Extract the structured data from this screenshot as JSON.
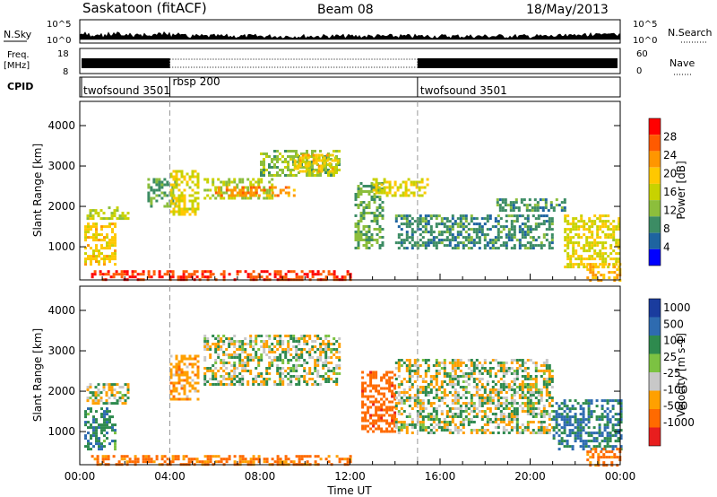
{
  "header": {
    "station": "Saskatoon (fitACF)",
    "beam": "Beam 08",
    "date": "18/May/2013"
  },
  "nsky_panel": {
    "left_label": "N.Sky",
    "right_label": "N.Search",
    "right_ticks": [
      "10^5",
      "10^0"
    ],
    "left_ticks": [
      "10^5",
      "10^0"
    ]
  },
  "freq_panel": {
    "left_label_1": "Freq.",
    "left_label_2": "[MHz]",
    "left_ticks": [
      "18",
      "8"
    ],
    "right_label": "Nave",
    "right_ticks": [
      "60",
      "0"
    ]
  },
  "cpid_panel": {
    "label": "CPID",
    "segments": [
      {
        "name": "twofsound 3501",
        "start_hour": 0
      },
      {
        "name": "rbsp 200",
        "start_hour": 4
      },
      {
        "name": "twofsound 3501",
        "start_hour": 15
      }
    ]
  },
  "x_axis": {
    "label": "Time UT",
    "ticks": [
      "00:00",
      "04:00",
      "08:00",
      "12:00",
      "16:00",
      "20:00",
      "00:00"
    ],
    "range_hours": [
      0,
      24
    ]
  },
  "power_panel": {
    "ylabel": "Slant Range [km]",
    "yticks": [
      "4000",
      "3000",
      "2000",
      "1000"
    ],
    "colorbar_label": "Power [dB]",
    "colorbar_ticks": [
      "28",
      "24",
      "20",
      "16",
      "12",
      "8",
      "4"
    ],
    "colorbar_colors": [
      "#ff0000",
      "#ff5a00",
      "#ff9600",
      "#ffc800",
      "#c8d200",
      "#8cbe3c",
      "#3c8c64",
      "#1e64a0",
      "#0000ff"
    ]
  },
  "velocity_panel": {
    "ylabel": "Slant Range [km]",
    "yticks": [
      "4000",
      "3000",
      "2000",
      "1000"
    ],
    "colorbar_label": "Velocity [m s-1]",
    "colorbar_ticks": [
      "1000",
      "500",
      "100",
      "25",
      "-25",
      "-100",
      "-500",
      "-1000"
    ],
    "colorbar_colors": [
      "#1a3c9e",
      "#2e6bb0",
      "#2e8a4e",
      "#7cc242",
      "#c8c8c8",
      "#ffa000",
      "#ff6a00",
      "#e81e1e"
    ]
  },
  "chart_data": {
    "type": "heatmap",
    "title": "Saskatoon (fitACF)",
    "xlabel": "Time UT",
    "ylabel": "Slant Range [km]",
    "xlim_hours": [
      0,
      24
    ],
    "ylim_km": [
      180,
      4600
    ],
    "boundary_markers_hours": [
      4,
      15
    ],
    "series": [
      {
        "name": "Power [dB]",
        "scale": [
          0,
          30
        ],
        "regions": [
          {
            "t0": 0.2,
            "t1": 1.6,
            "r0": 600,
            "r1": 1600,
            "value": 18
          },
          {
            "t0": 0.3,
            "t1": 2.2,
            "r0": 1700,
            "r1": 2000,
            "value": 14
          },
          {
            "t0": 0.5,
            "t1": 12.0,
            "r0": 180,
            "r1": 420,
            "value": 26
          },
          {
            "t0": 3.0,
            "t1": 4.2,
            "r0": 2000,
            "r1": 2700,
            "value": 10
          },
          {
            "t0": 4.0,
            "t1": 5.2,
            "r0": 1800,
            "r1": 2900,
            "value": 16
          },
          {
            "t0": 5.5,
            "t1": 8.5,
            "r0": 2200,
            "r1": 2700,
            "value": 14
          },
          {
            "t0": 6.0,
            "t1": 9.5,
            "r0": 2300,
            "r1": 2500,
            "value": 22
          },
          {
            "t0": 8.0,
            "t1": 11.5,
            "r0": 2800,
            "r1": 3400,
            "value": 12
          },
          {
            "t0": 9.5,
            "t1": 11.5,
            "r0": 2900,
            "r1": 3300,
            "value": 18
          },
          {
            "t0": 12.2,
            "t1": 13.5,
            "r0": 1000,
            "r1": 2600,
            "value": 10
          },
          {
            "t0": 13.0,
            "t1": 15.5,
            "r0": 2300,
            "r1": 2700,
            "value": 16
          },
          {
            "t0": 14.0,
            "t1": 21.0,
            "r0": 1000,
            "r1": 1800,
            "value": 8
          },
          {
            "t0": 18.5,
            "t1": 21.5,
            "r0": 1900,
            "r1": 2200,
            "value": 8
          },
          {
            "t0": 21.5,
            "t1": 24.0,
            "r0": 500,
            "r1": 1800,
            "value": 16
          },
          {
            "t0": 22.5,
            "t1": 24.0,
            "r0": 180,
            "r1": 600,
            "value": 20
          }
        ]
      },
      {
        "name": "Velocity [m s-1]",
        "scale": [
          -1000,
          1000
        ],
        "regions": [
          {
            "t0": 0.2,
            "t1": 1.6,
            "r0": 600,
            "r1": 1600,
            "value": 200
          },
          {
            "t0": 0.3,
            "t1": 2.2,
            "r0": 1700,
            "r1": 2200,
            "value": 0
          },
          {
            "t0": 0.5,
            "t1": 12.0,
            "r0": 180,
            "r1": 420,
            "value": -400
          },
          {
            "t0": 4.0,
            "t1": 5.2,
            "r0": 1800,
            "r1": 2900,
            "value": -200
          },
          {
            "t0": 5.5,
            "t1": 11.5,
            "r0": 2200,
            "r1": 3400,
            "value": 0
          },
          {
            "t0": 12.5,
            "t1": 14.0,
            "r0": 1000,
            "r1": 2500,
            "value": -600
          },
          {
            "t0": 14.0,
            "t1": 21.0,
            "r0": 1000,
            "r1": 2800,
            "value": 0
          },
          {
            "t0": 21.0,
            "t1": 24.0,
            "r0": 600,
            "r1": 1800,
            "value": 300
          },
          {
            "t0": 22.5,
            "t1": 24.0,
            "r0": 180,
            "r1": 600,
            "value": -400
          }
        ]
      }
    ]
  }
}
